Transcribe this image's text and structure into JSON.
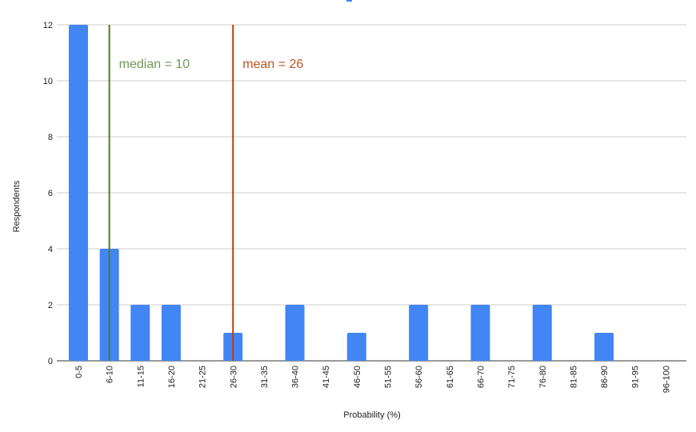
{
  "chart_data": {
    "type": "bar",
    "title": "",
    "xlabel": "Probability (%)",
    "ylabel": "Respondents",
    "ylim": [
      0,
      12
    ],
    "yticks": [
      0,
      2,
      4,
      6,
      8,
      10,
      12
    ],
    "grid": true,
    "categories": [
      "0-5",
      "6-10",
      "11-15",
      "16-20",
      "21-25",
      "26-30",
      "31-35",
      "36-40",
      "41-45",
      "46-50",
      "51-55",
      "56-60",
      "61-65",
      "66-70",
      "71-75",
      "76-80",
      "81-85",
      "86-90",
      "91-95",
      "96-100"
    ],
    "values": [
      12,
      4,
      2,
      2,
      0,
      1,
      0,
      2,
      0,
      1,
      0,
      2,
      0,
      2,
      0,
      2,
      0,
      1,
      0,
      0
    ],
    "bar_color": "#4285f4",
    "annotations": [
      {
        "label": "median = 10",
        "category": "6-10",
        "line_color": "#4f7a22",
        "text_color": "#6f9a58"
      },
      {
        "label": "mean = 26",
        "category": "26-30",
        "line_color": "#b7410e",
        "text_color": "#b9541f"
      }
    ]
  }
}
